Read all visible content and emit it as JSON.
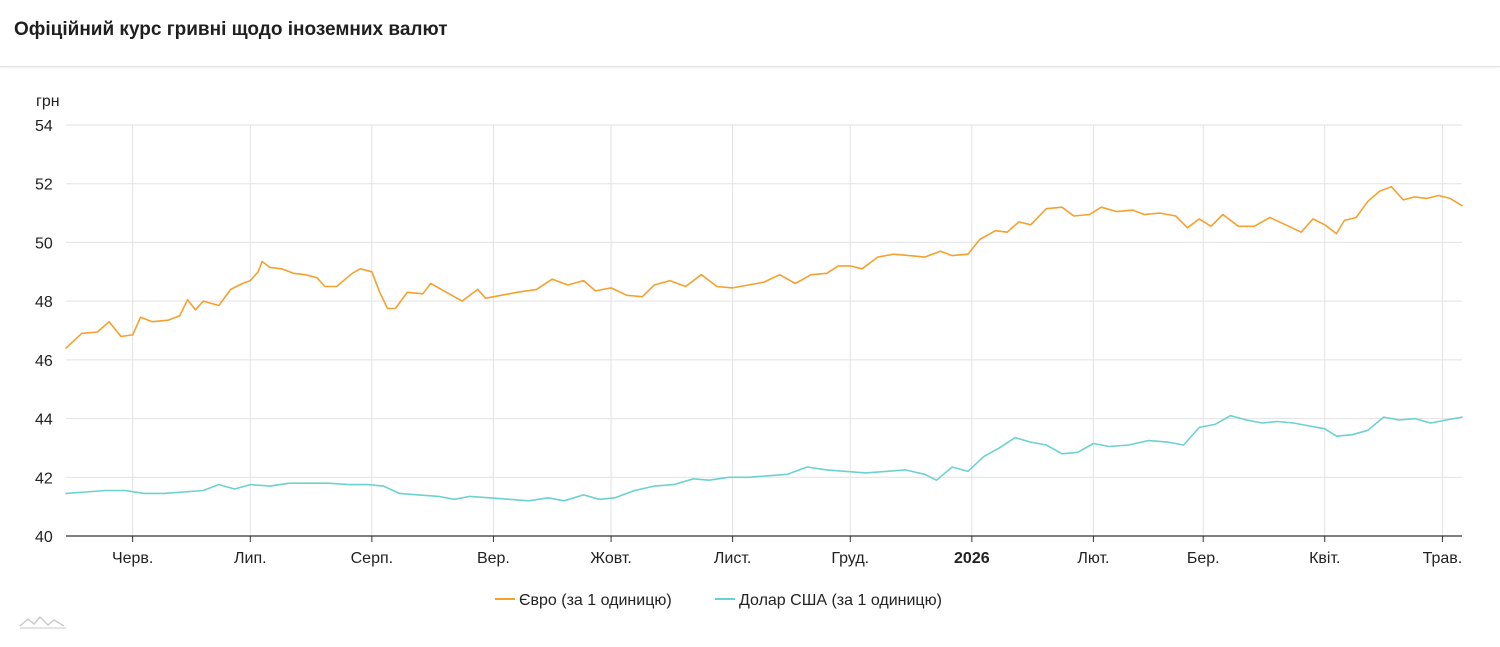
{
  "header": {
    "title": "Офіційний курс гривні щодо іноземних валют"
  },
  "chart_data": {
    "type": "line",
    "ylabel": "грн",
    "ylim": [
      40,
      54
    ],
    "yticks": [
      40,
      42,
      44,
      46,
      48,
      50,
      52,
      54
    ],
    "grid": true,
    "legend_position": "bottom",
    "x_start": "2025-05-15",
    "x_end": "2026-05-06",
    "xticks": [
      {
        "date": "2025-06-01",
        "label": "Черв.",
        "bold": false
      },
      {
        "date": "2025-07-01",
        "label": "Лип.",
        "bold": false
      },
      {
        "date": "2025-08-01",
        "label": "Серп.",
        "bold": false
      },
      {
        "date": "2025-09-01",
        "label": "Вер.",
        "bold": false
      },
      {
        "date": "2025-10-01",
        "label": "Жовт.",
        "bold": false
      },
      {
        "date": "2025-11-01",
        "label": "Лист.",
        "bold": false
      },
      {
        "date": "2025-12-01",
        "label": "Груд.",
        "bold": false
      },
      {
        "date": "2026-01-01",
        "label": "2026",
        "bold": true
      },
      {
        "date": "2026-02-01",
        "label": "Лют.",
        "bold": false
      },
      {
        "date": "2026-03-01",
        "label": "Бер.",
        "bold": false
      },
      {
        "date": "2026-04-01",
        "label": "Квіт.",
        "bold": false
      },
      {
        "date": "2026-05-01",
        "label": "Трав.",
        "bold": false
      }
    ],
    "series": [
      {
        "name": "Євро (за 1 одиницю)",
        "color": "#f5a12f",
        "points": [
          [
            "2025-05-15",
            46.4
          ],
          [
            "2025-05-19",
            46.9
          ],
          [
            "2025-05-23",
            46.95
          ],
          [
            "2025-05-26",
            47.3
          ],
          [
            "2025-05-29",
            46.8
          ],
          [
            "2025-06-01",
            46.85
          ],
          [
            "2025-06-03",
            47.45
          ],
          [
            "2025-06-06",
            47.3
          ],
          [
            "2025-06-10",
            47.35
          ],
          [
            "2025-06-13",
            47.5
          ],
          [
            "2025-06-15",
            48.05
          ],
          [
            "2025-06-17",
            47.7
          ],
          [
            "2025-06-19",
            48.0
          ],
          [
            "2025-06-23",
            47.85
          ],
          [
            "2025-06-26",
            48.4
          ],
          [
            "2025-06-29",
            48.6
          ],
          [
            "2025-07-01",
            48.7
          ],
          [
            "2025-07-03",
            49.0
          ],
          [
            "2025-07-04",
            49.35
          ],
          [
            "2025-07-06",
            49.15
          ],
          [
            "2025-07-09",
            49.1
          ],
          [
            "2025-07-12",
            48.95
          ],
          [
            "2025-07-15",
            48.9
          ],
          [
            "2025-07-18",
            48.8
          ],
          [
            "2025-07-20",
            48.5
          ],
          [
            "2025-07-23",
            48.5
          ],
          [
            "2025-07-27",
            48.95
          ],
          [
            "2025-07-29",
            49.1
          ],
          [
            "2025-08-01",
            49.0
          ],
          [
            "2025-08-03",
            48.3
          ],
          [
            "2025-08-05",
            47.75
          ],
          [
            "2025-08-07",
            47.75
          ],
          [
            "2025-08-10",
            48.3
          ],
          [
            "2025-08-14",
            48.25
          ],
          [
            "2025-08-16",
            48.6
          ],
          [
            "2025-08-20",
            48.3
          ],
          [
            "2025-08-24",
            48.0
          ],
          [
            "2025-08-28",
            48.4
          ],
          [
            "2025-08-30",
            48.1
          ],
          [
            "2025-09-03",
            48.2
          ],
          [
            "2025-09-07",
            48.3
          ],
          [
            "2025-09-12",
            48.4
          ],
          [
            "2025-09-16",
            48.75
          ],
          [
            "2025-09-20",
            48.55
          ],
          [
            "2025-09-24",
            48.7
          ],
          [
            "2025-09-27",
            48.35
          ],
          [
            "2025-10-01",
            48.45
          ],
          [
            "2025-10-05",
            48.2
          ],
          [
            "2025-10-09",
            48.15
          ],
          [
            "2025-10-12",
            48.55
          ],
          [
            "2025-10-16",
            48.7
          ],
          [
            "2025-10-20",
            48.5
          ],
          [
            "2025-10-24",
            48.9
          ],
          [
            "2025-10-28",
            48.5
          ],
          [
            "2025-11-01",
            48.45
          ],
          [
            "2025-11-05",
            48.55
          ],
          [
            "2025-11-09",
            48.65
          ],
          [
            "2025-11-13",
            48.9
          ],
          [
            "2025-11-17",
            48.6
          ],
          [
            "2025-11-21",
            48.9
          ],
          [
            "2025-11-25",
            48.95
          ],
          [
            "2025-11-28",
            49.2
          ],
          [
            "2025-12-01",
            49.2
          ],
          [
            "2025-12-04",
            49.1
          ],
          [
            "2025-12-08",
            49.5
          ],
          [
            "2025-12-12",
            49.6
          ],
          [
            "2025-12-16",
            49.55
          ],
          [
            "2025-12-20",
            49.5
          ],
          [
            "2025-12-24",
            49.7
          ],
          [
            "2025-12-27",
            49.55
          ],
          [
            "2025-12-31",
            49.6
          ],
          [
            "2026-01-03",
            50.1
          ],
          [
            "2026-01-07",
            50.4
          ],
          [
            "2026-01-10",
            50.35
          ],
          [
            "2026-01-13",
            50.7
          ],
          [
            "2026-01-16",
            50.6
          ],
          [
            "2026-01-20",
            51.15
          ],
          [
            "2026-01-24",
            51.2
          ],
          [
            "2026-01-27",
            50.9
          ],
          [
            "2026-01-31",
            50.95
          ],
          [
            "2026-02-03",
            51.2
          ],
          [
            "2026-02-07",
            51.05
          ],
          [
            "2026-02-11",
            51.1
          ],
          [
            "2026-02-14",
            50.95
          ],
          [
            "2026-02-18",
            51.0
          ],
          [
            "2026-02-22",
            50.9
          ],
          [
            "2026-02-25",
            50.5
          ],
          [
            "2026-02-28",
            50.8
          ],
          [
            "2026-03-03",
            50.55
          ],
          [
            "2026-03-06",
            50.95
          ],
          [
            "2026-03-10",
            50.55
          ],
          [
            "2026-03-14",
            50.55
          ],
          [
            "2026-03-18",
            50.85
          ],
          [
            "2026-03-22",
            50.6
          ],
          [
            "2026-03-26",
            50.35
          ],
          [
            "2026-03-29",
            50.8
          ],
          [
            "2026-04-01",
            50.6
          ],
          [
            "2026-04-04",
            50.3
          ],
          [
            "2026-04-06",
            50.75
          ],
          [
            "2026-04-09",
            50.85
          ],
          [
            "2026-04-12",
            51.4
          ],
          [
            "2026-04-15",
            51.75
          ],
          [
            "2026-04-18",
            51.9
          ],
          [
            "2026-04-21",
            51.45
          ],
          [
            "2026-04-24",
            51.55
          ],
          [
            "2026-04-27",
            51.5
          ],
          [
            "2026-04-30",
            51.6
          ],
          [
            "2026-05-03",
            51.5
          ],
          [
            "2026-05-06",
            51.25
          ]
        ]
      },
      {
        "name": "Долар США (за 1 одиницю)",
        "color": "#6cd2cf",
        "points": [
          [
            "2025-05-15",
            41.45
          ],
          [
            "2025-05-20",
            41.5
          ],
          [
            "2025-05-25",
            41.55
          ],
          [
            "2025-05-30",
            41.55
          ],
          [
            "2025-06-04",
            41.45
          ],
          [
            "2025-06-09",
            41.45
          ],
          [
            "2025-06-14",
            41.5
          ],
          [
            "2025-06-19",
            41.55
          ],
          [
            "2025-06-23",
            41.75
          ],
          [
            "2025-06-27",
            41.6
          ],
          [
            "2025-07-01",
            41.75
          ],
          [
            "2025-07-06",
            41.7
          ],
          [
            "2025-07-11",
            41.8
          ],
          [
            "2025-07-16",
            41.8
          ],
          [
            "2025-07-21",
            41.8
          ],
          [
            "2025-07-26",
            41.75
          ],
          [
            "2025-07-31",
            41.75
          ],
          [
            "2025-08-04",
            41.7
          ],
          [
            "2025-08-08",
            41.45
          ],
          [
            "2025-08-13",
            41.4
          ],
          [
            "2025-08-18",
            41.35
          ],
          [
            "2025-08-22",
            41.25
          ],
          [
            "2025-08-26",
            41.35
          ],
          [
            "2025-08-31",
            41.3
          ],
          [
            "2025-09-05",
            41.25
          ],
          [
            "2025-09-10",
            41.2
          ],
          [
            "2025-09-15",
            41.3
          ],
          [
            "2025-09-19",
            41.2
          ],
          [
            "2025-09-24",
            41.4
          ],
          [
            "2025-09-28",
            41.25
          ],
          [
            "2025-10-02",
            41.3
          ],
          [
            "2025-10-07",
            41.55
          ],
          [
            "2025-10-12",
            41.7
          ],
          [
            "2025-10-17",
            41.75
          ],
          [
            "2025-10-22",
            41.95
          ],
          [
            "2025-10-26",
            41.9
          ],
          [
            "2025-10-31",
            42.0
          ],
          [
            "2025-11-05",
            42.0
          ],
          [
            "2025-11-10",
            42.05
          ],
          [
            "2025-11-15",
            42.1
          ],
          [
            "2025-11-20",
            42.35
          ],
          [
            "2025-11-25",
            42.25
          ],
          [
            "2025-11-30",
            42.2
          ],
          [
            "2025-12-05",
            42.15
          ],
          [
            "2025-12-10",
            42.2
          ],
          [
            "2025-12-15",
            42.25
          ],
          [
            "2025-12-20",
            42.1
          ],
          [
            "2025-12-23",
            41.9
          ],
          [
            "2025-12-27",
            42.35
          ],
          [
            "2025-12-31",
            42.2
          ],
          [
            "2026-01-04",
            42.7
          ],
          [
            "2026-01-08",
            43.0
          ],
          [
            "2026-01-12",
            43.35
          ],
          [
            "2026-01-16",
            43.2
          ],
          [
            "2026-01-20",
            43.1
          ],
          [
            "2026-01-24",
            42.8
          ],
          [
            "2026-01-28",
            42.85
          ],
          [
            "2026-02-01",
            43.15
          ],
          [
            "2026-02-05",
            43.05
          ],
          [
            "2026-02-10",
            43.1
          ],
          [
            "2026-02-15",
            43.25
          ],
          [
            "2026-02-20",
            43.2
          ],
          [
            "2026-02-24",
            43.1
          ],
          [
            "2026-02-28",
            43.7
          ],
          [
            "2026-03-04",
            43.8
          ],
          [
            "2026-03-08",
            44.1
          ],
          [
            "2026-03-12",
            43.95
          ],
          [
            "2026-03-16",
            43.85
          ],
          [
            "2026-03-20",
            43.9
          ],
          [
            "2026-03-24",
            43.85
          ],
          [
            "2026-03-28",
            43.75
          ],
          [
            "2026-04-01",
            43.65
          ],
          [
            "2026-04-04",
            43.4
          ],
          [
            "2026-04-08",
            43.45
          ],
          [
            "2026-04-12",
            43.6
          ],
          [
            "2026-04-16",
            44.05
          ],
          [
            "2026-04-20",
            43.95
          ],
          [
            "2026-04-24",
            44.0
          ],
          [
            "2026-04-28",
            43.85
          ],
          [
            "2026-05-02",
            43.95
          ],
          [
            "2026-05-06",
            44.05
          ]
        ]
      }
    ]
  }
}
